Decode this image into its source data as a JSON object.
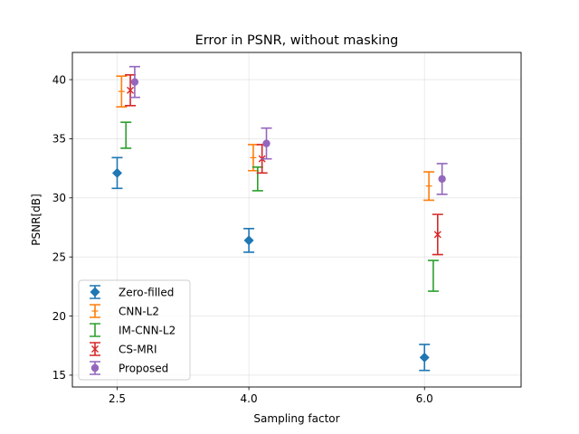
{
  "chart_data": {
    "type": "scatter",
    "title": "Error in PSNR, without masking",
    "xlabel": "Sampling factor",
    "ylabel": "PSNR[dB]",
    "xlim": [
      1.99,
      7.1
    ],
    "ylim": [
      14.0,
      42.3
    ],
    "x_ticks": [
      "2.5",
      "4.0",
      "6.0"
    ],
    "y_ticks": [
      "15",
      "20",
      "25",
      "30",
      "35",
      "40"
    ],
    "grid": true,
    "legend_position": "lower-left",
    "series": [
      {
        "name": "Zero-filled",
        "color": "#1f77b4",
        "marker": "diamond",
        "x": [
          2.5,
          4.0,
          6.0
        ],
        "y": [
          32.1,
          26.4,
          16.5
        ],
        "err": [
          1.3,
          1.0,
          1.1
        ]
      },
      {
        "name": "CNN-L2",
        "color": "#ff7f0e",
        "marker": "plus",
        "x": [
          2.55,
          4.05,
          6.05
        ],
        "y": [
          39.0,
          33.4,
          31.0
        ],
        "err": [
          1.3,
          1.1,
          1.2
        ]
      },
      {
        "name": "IM-CNN-L2",
        "color": "#2ca02c",
        "marker": "none",
        "x": [
          2.6,
          4.1,
          6.1
        ],
        "y": [
          35.3,
          31.6,
          23.4
        ],
        "err": [
          1.1,
          1.0,
          1.3
        ]
      },
      {
        "name": "CS-MRI",
        "color": "#d62728",
        "marker": "x",
        "x": [
          2.65,
          4.15,
          6.15
        ],
        "y": [
          39.1,
          33.3,
          26.9
        ],
        "err": [
          1.3,
          1.2,
          1.7
        ]
      },
      {
        "name": "Proposed",
        "color": "#9467bd",
        "marker": "circle",
        "x": [
          2.7,
          4.2,
          6.2
        ],
        "y": [
          39.8,
          34.6,
          31.6
        ],
        "err": [
          1.3,
          1.3,
          1.3
        ]
      }
    ]
  }
}
